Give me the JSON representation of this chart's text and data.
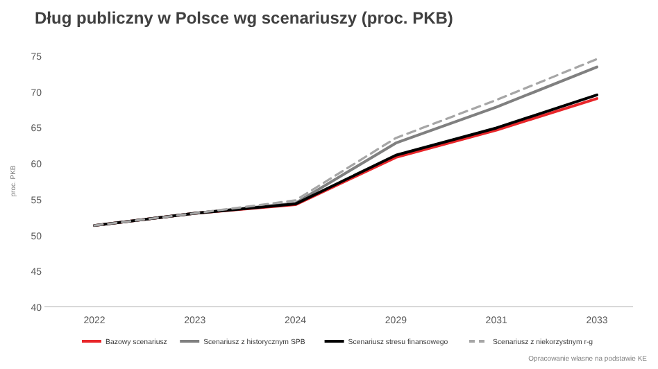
{
  "chart_data": {
    "type": "line",
    "title": "Dług publiczny w Polsce wg scenariuszy (proc. PKB)",
    "ylabel": "proc. PKB",
    "categories": [
      "2022",
      "2023",
      "2024",
      "2029",
      "2031",
      "2033"
    ],
    "series": [
      {
        "name": "Bazowy scenariusz",
        "color": "#e8262a",
        "values": [
          51.3,
          53.0,
          54.2,
          60.8,
          64.6,
          69.0
        ]
      },
      {
        "name": "Scenariusz z historycznym SPB",
        "color": "#808080",
        "values": [
          51.3,
          53.0,
          54.4,
          62.8,
          67.8,
          73.4
        ]
      },
      {
        "name": "Scenariusz stresu finansowego",
        "color": "#000000",
        "values": [
          51.3,
          53.0,
          54.3,
          61.1,
          64.9,
          69.5
        ]
      },
      {
        "name": "Scenariusz z niekorzystnym r-g",
        "color": "#a6a6a6",
        "line_style": "dashed",
        "values": [
          51.3,
          53.0,
          54.8,
          63.5,
          68.8,
          74.5
        ]
      }
    ],
    "ylim": [
      40,
      75
    ],
    "yticks": [
      40,
      45,
      50,
      55,
      60,
      65,
      70,
      75
    ],
    "grid": false,
    "legend": "bottom",
    "marker": "none",
    "annotations": [
      "Opracowanie własne na podstawie KE"
    ]
  }
}
